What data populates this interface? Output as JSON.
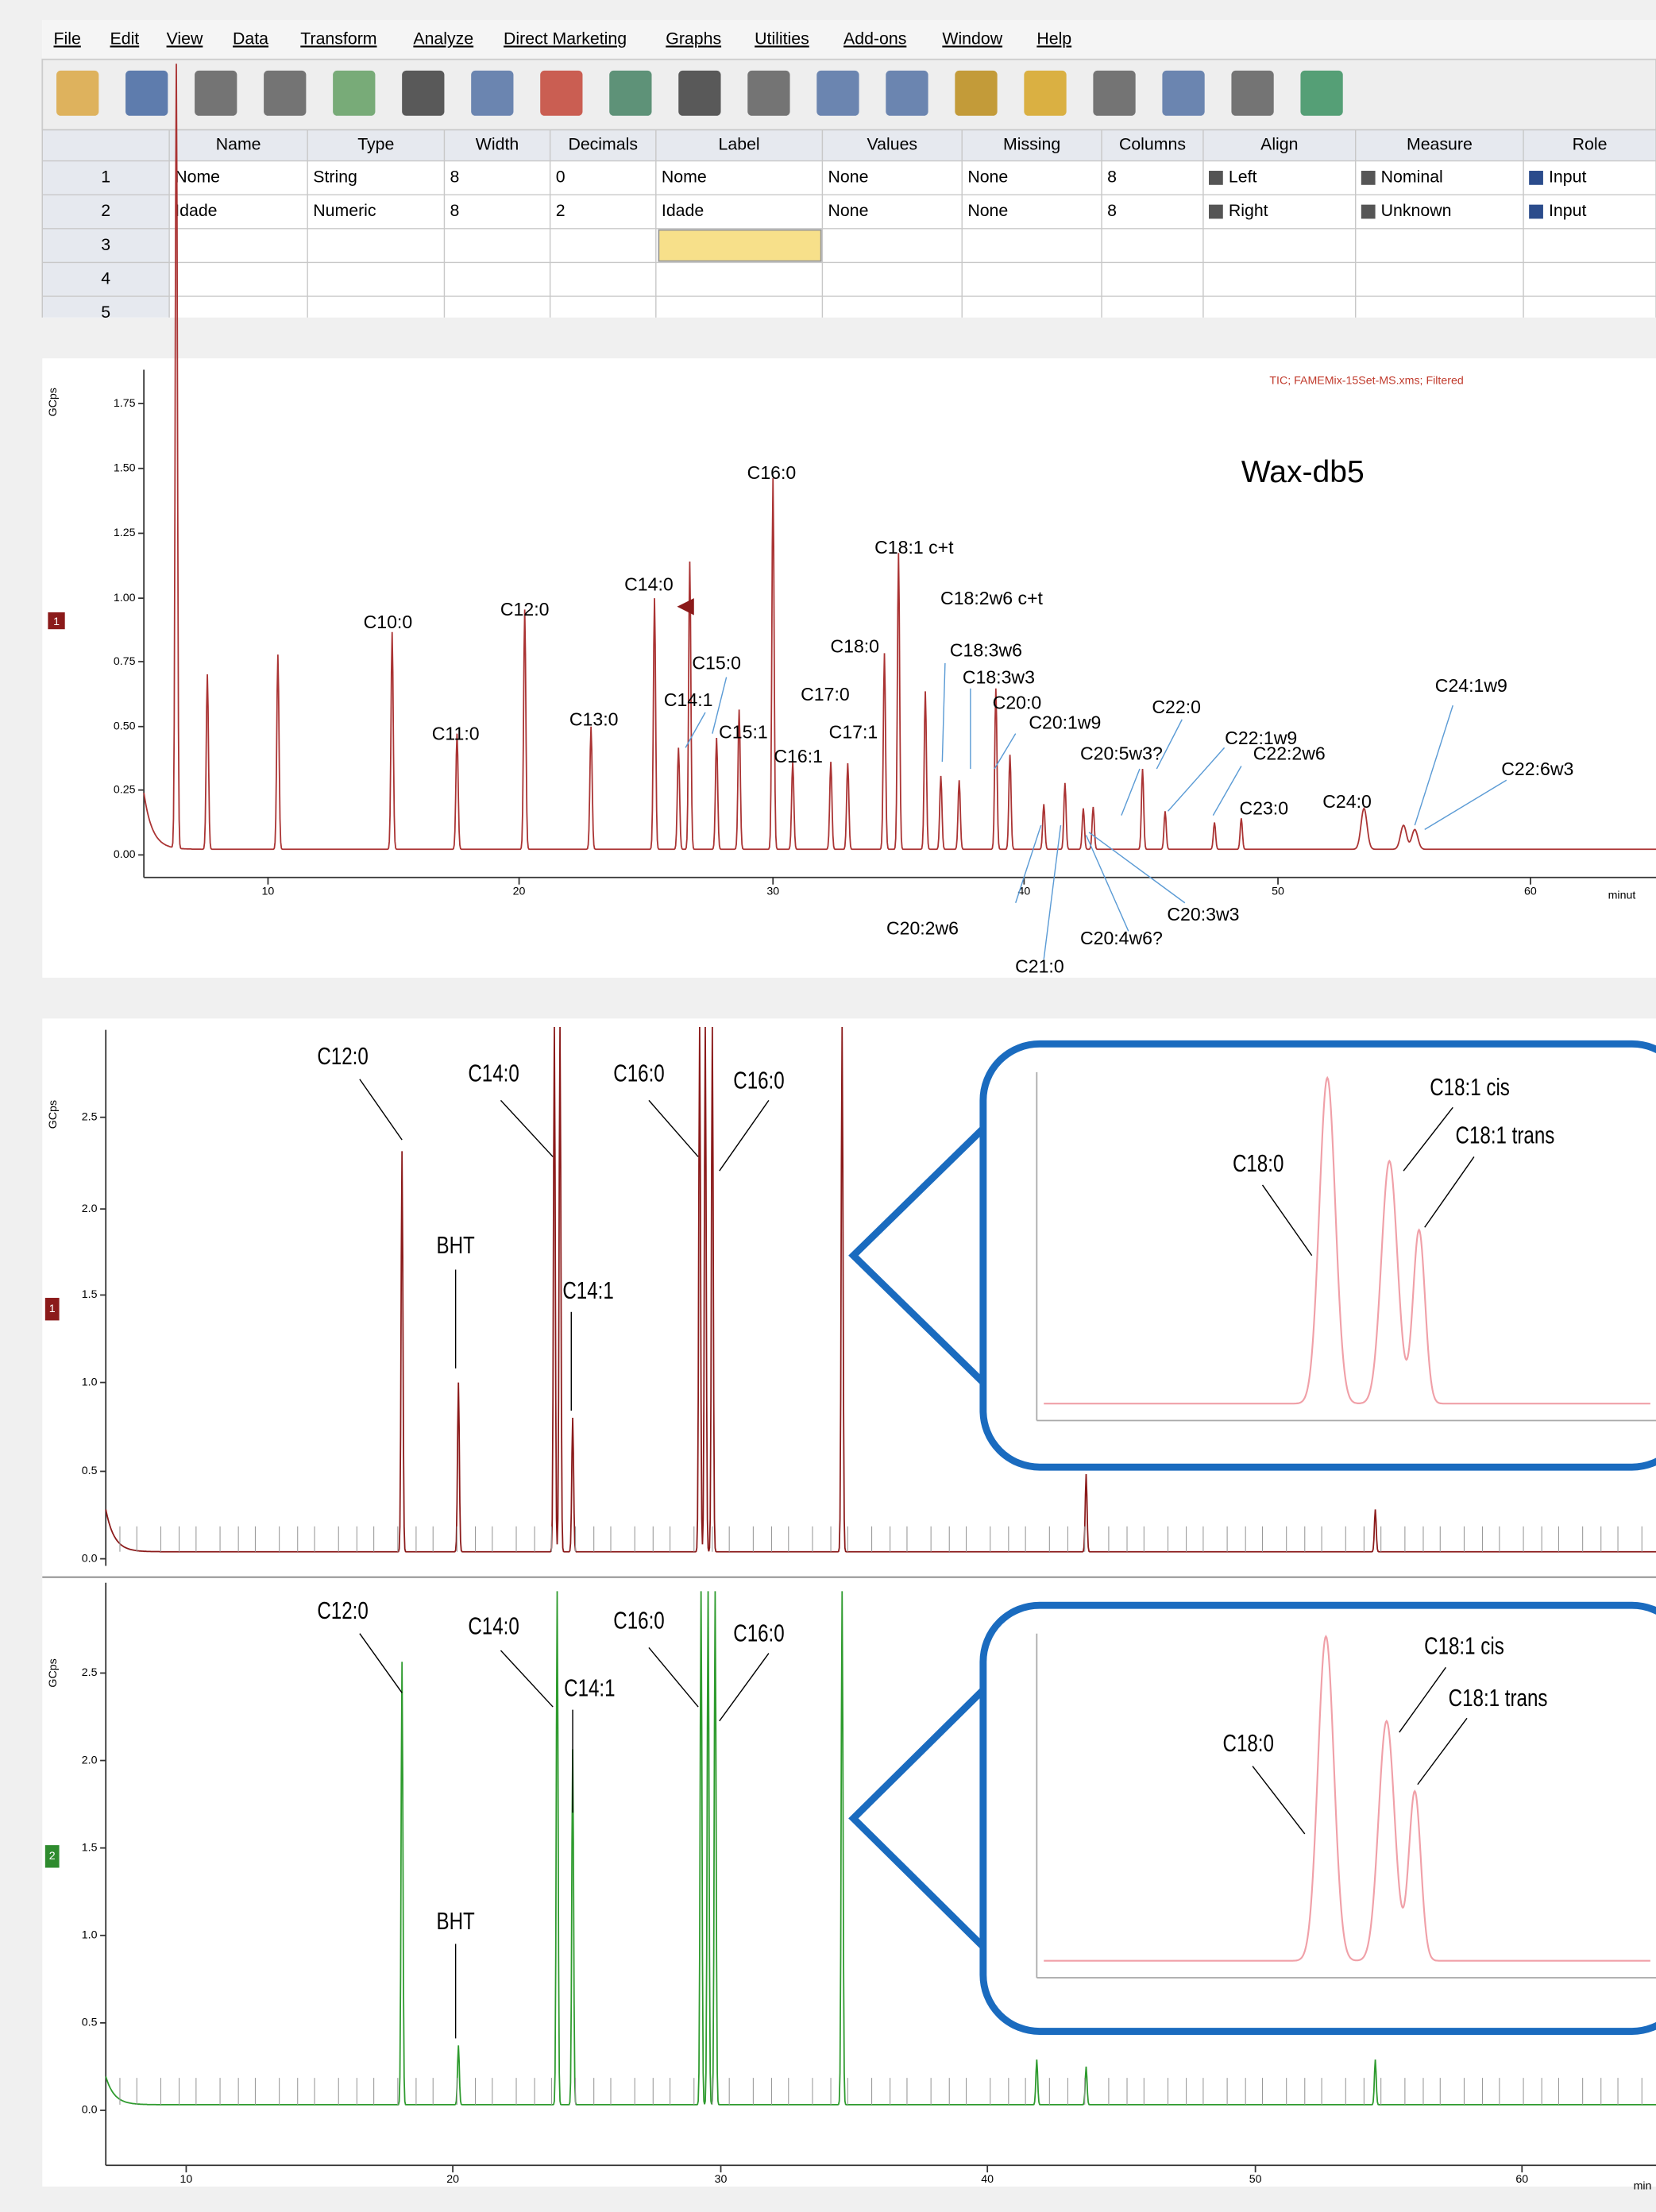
{
  "menu": [
    "File",
    "Edit",
    "View",
    "Data",
    "Transform",
    "Analyze",
    "Direct Marketing",
    "Graphs",
    "Utilities",
    "Add-ons",
    "Window",
    "Help"
  ],
  "grid": {
    "headers": [
      "Name",
      "Type",
      "Width",
      "Decimals",
      "Label",
      "Values",
      "Missing",
      "Columns",
      "Align",
      "Measure",
      "Role"
    ],
    "rows": [
      [
        "1",
        "Nome",
        "String",
        "8",
        "0",
        "Nome",
        "None",
        "None",
        "8",
        "Left",
        "Nominal",
        "Input"
      ],
      [
        "2",
        "Idade",
        "Numeric",
        "8",
        "2",
        "Idade",
        "None",
        "None",
        "8",
        "Right",
        "Unknown",
        "Input"
      ],
      [
        "3"
      ],
      [
        "4"
      ],
      [
        "5"
      ]
    ]
  },
  "chromatogram_1": {
    "y_axis_label": "GCps",
    "header": "TIC;  FAMEMix-15Set-MS.xms;  Filtered",
    "title": "Wax-db5",
    "trace_badge": "1",
    "yticks": [
      "1.75",
      "1.50",
      "1.25",
      "1.00",
      "0.75",
      "0.50",
      "0.25",
      "0.00"
    ],
    "xticks": [
      "10",
      "20",
      "30",
      "40",
      "50",
      "60"
    ],
    "x_axis_label": "minut",
    "peak_labels": [
      "C10:0",
      "C12:0",
      "C14:0",
      "C11:0",
      "C13:0",
      "C15:0",
      "C14:1",
      "C15:1",
      "C16:1",
      "C16:0",
      "C17:0",
      "C17:1",
      "C18:0",
      "C18:1 c+t",
      "C18:2w6 c+t",
      "C18:3w6",
      "C18:3w3",
      "C20:0",
      "C20:1w9",
      "C20:5w3?",
      "C22:0",
      "C22:1w9",
      "C22:2w6",
      "C23:0",
      "C24:0",
      "C24:1w9",
      "C22:6w3",
      "C20:2w6",
      "C20:3w3",
      "C20:4w6?",
      "C21:0"
    ]
  },
  "chromatogram_2": {
    "y_axis_label": "GCps",
    "trace_badges": [
      "1",
      "2"
    ],
    "yticks": [
      "2.5",
      "2.0",
      "1.5",
      "1.0",
      "0.5",
      "0.0"
    ],
    "xticks": [
      "10",
      "20",
      "30",
      "40",
      "50",
      "60"
    ],
    "x_axis_label": "min",
    "top_labels": [
      "C12:0",
      "C14:0",
      "C16:0",
      "C16:0",
      "BHT",
      "C14:1",
      "C18:0",
      "C18:1 cis",
      "C18:1 trans"
    ],
    "bottom_labels": [
      "C12:0",
      "C14:0",
      "C14:1",
      "C16:0",
      "C16:0",
      "BHT",
      "C18:0",
      "C18:1 cis",
      "C18:1 trans"
    ]
  }
}
